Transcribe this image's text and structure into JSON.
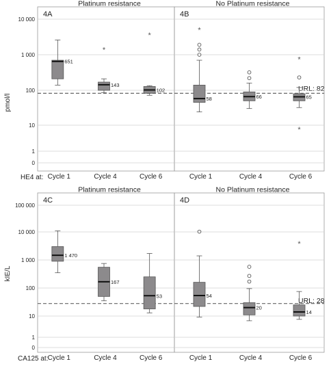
{
  "figure": {
    "x_categories": [
      "Cycle 1",
      "Cycle 4",
      "Cycle 6"
    ],
    "top_row": {
      "y_label": "pmol/l",
      "row_prefix": "HE4 at:",
      "ref_label": "URL: 82",
      "y_ticks": [
        "10 000",
        "1 000",
        "100",
        "10",
        "1",
        "0"
      ]
    },
    "bottom_row": {
      "y_label": "kIE/L",
      "row_prefix": "CA125 at:",
      "ref_label": "URL: 28",
      "y_ticks": [
        "100 000",
        "10 000",
        "1 000",
        "100",
        "10",
        "1",
        "0"
      ]
    }
  },
  "chart_data": [
    {
      "type": "box",
      "panel": "4A",
      "title": "Platinum resistance",
      "ylabel": "pmol/l",
      "scale": "log",
      "categories": [
        "Cycle 1",
        "Cycle 4",
        "Cycle 6"
      ],
      "boxes": [
        {
          "min": 140,
          "q1": 210,
          "median": 651,
          "q3": 700,
          "max": 2600,
          "median_label": "651",
          "outliers": [],
          "extremes": []
        },
        {
          "min": 85,
          "q1": 100,
          "median": 143,
          "q3": 170,
          "max": 210,
          "median_label": "143",
          "outliers": [],
          "extremes": [
            1400
          ]
        },
        {
          "min": 72,
          "q1": 82,
          "median": 102,
          "q3": 128,
          "max": 135,
          "median_label": "102",
          "outliers": [],
          "extremes": [
            3600
          ]
        }
      ],
      "reference_line": 82
    },
    {
      "type": "box",
      "panel": "4B",
      "title": "No Platinum resistance",
      "ylabel": "pmol/l",
      "scale": "log",
      "categories": [
        "Cycle 1",
        "Cycle 4",
        "Cycle 6"
      ],
      "boxes": [
        {
          "min": 24,
          "q1": 45,
          "median": 58,
          "q3": 140,
          "max": 700,
          "median_label": "58",
          "outliers": [
            1000,
            1400,
            1900
          ],
          "extremes": [
            5000
          ]
        },
        {
          "min": 30,
          "q1": 50,
          "median": 66,
          "q3": 90,
          "max": 160,
          "median_label": "66",
          "outliers": [
            220,
            320
          ],
          "extremes": []
        },
        {
          "min": 32,
          "q1": 50,
          "median": 65,
          "q3": 80,
          "max": 120,
          "median_label": "65",
          "outliers": [
            230
          ],
          "extremes": [
            750,
            7
          ]
        }
      ],
      "reference_line": 82,
      "reference_label": "URL: 82"
    },
    {
      "type": "box",
      "panel": "4C",
      "title": "Platinum resistance",
      "ylabel": "kIE/L",
      "scale": "log",
      "categories": [
        "Cycle 1",
        "Cycle 4",
        "Cycle 6"
      ],
      "boxes": [
        {
          "min": 350,
          "q1": 900,
          "median": 1470,
          "q3": 3000,
          "max": 11000,
          "median_label": "1 470",
          "outliers": [],
          "extremes": []
        },
        {
          "min": 35,
          "q1": 50,
          "median": 167,
          "q3": 550,
          "max": 750,
          "median_label": "167",
          "outliers": [],
          "extremes": []
        },
        {
          "min": 13,
          "q1": 18,
          "median": 53,
          "q3": 250,
          "max": 1700,
          "median_label": "53",
          "outliers": [],
          "extremes": []
        }
      ],
      "reference_line": 28
    },
    {
      "type": "box",
      "panel": "4D",
      "title": "No Platinum resistance",
      "ylabel": "kIE/L",
      "scale": "log",
      "categories": [
        "Cycle 1",
        "Cycle 4",
        "Cycle 6"
      ],
      "boxes": [
        {
          "min": 9,
          "q1": 22,
          "median": 54,
          "q3": 160,
          "max": 1400,
          "median_label": "54",
          "outliers": [
            10200
          ],
          "extremes": []
        },
        {
          "min": 6,
          "q1": 11,
          "median": 20,
          "q3": 30,
          "max": 95,
          "median_label": "20",
          "outliers": [
            170,
            270,
            570
          ],
          "extremes": []
        },
        {
          "min": 7,
          "q1": 10,
          "median": 14,
          "q3": 25,
          "max": 75,
          "median_label": "14",
          "outliers": [],
          "extremes": [
            3800
          ]
        }
      ],
      "reference_line": 28,
      "reference_label": "URL: 28"
    }
  ]
}
